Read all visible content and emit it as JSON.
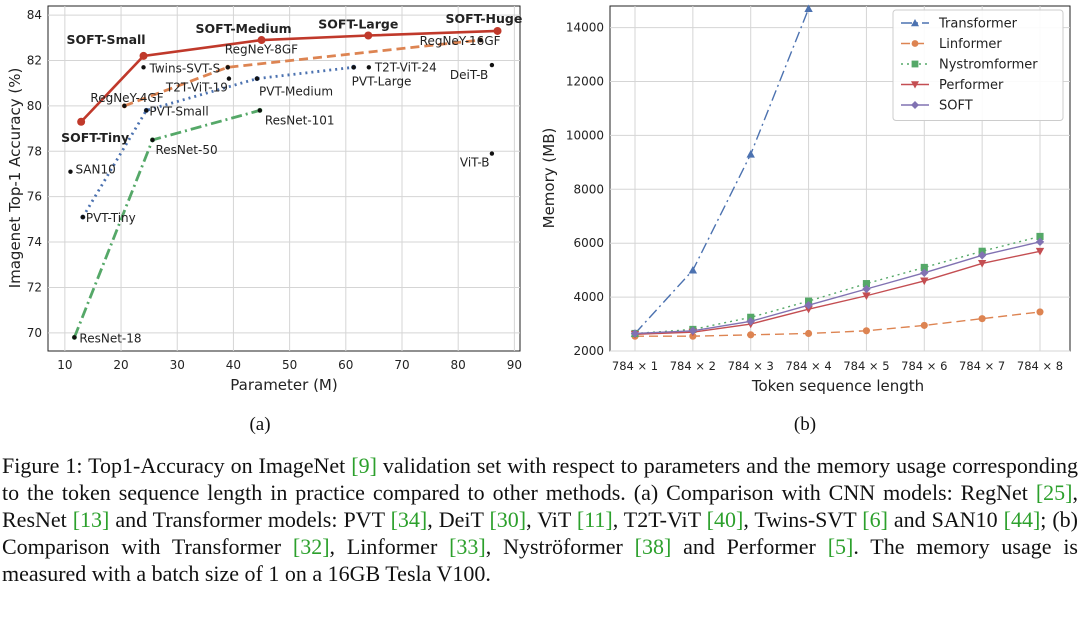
{
  "chart_data": [
    {
      "type": "scatter",
      "panel_label": "(a)",
      "xlabel": "Parameter (M)",
      "ylabel": "Imagenet Top-1 Accuracy (%)",
      "xlim": [
        7,
        91
      ],
      "ylim": [
        69.2,
        84.4
      ],
      "xticks": [
        10,
        20,
        30,
        40,
        50,
        60,
        70,
        80,
        90
      ],
      "yticks": [
        70,
        72,
        74,
        76,
        78,
        80,
        82,
        84
      ],
      "grid": true,
      "lines": [
        {
          "name": "SOFT",
          "color": "#c0392b",
          "style": "solid",
          "x": [
            12.9,
            24,
            45,
            64,
            87
          ],
          "y": [
            79.3,
            82.2,
            82.9,
            83.1,
            83.3
          ]
        },
        {
          "name": "RegNetY",
          "color": "#dd8452",
          "style": "dashed",
          "x": [
            20.6,
            39,
            84
          ],
          "y": [
            80.0,
            81.7,
            82.9
          ]
        },
        {
          "name": "PVT",
          "color": "#4c72b0",
          "style": "dotted",
          "x": [
            13.2,
            24.5,
            44.2,
            61.4
          ],
          "y": [
            75.1,
            79.8,
            81.2,
            81.7
          ]
        },
        {
          "name": "ResNet",
          "color": "#55a868",
          "style": "dashdot",
          "x": [
            11.7,
            25.6,
            44.7
          ],
          "y": [
            69.8,
            78.5,
            79.8
          ]
        }
      ],
      "points": [
        {
          "label": "SOFT-Tiny",
          "x": 12.9,
          "y": 79.3,
          "bold": true
        },
        {
          "label": "SOFT-Small",
          "x": 24,
          "y": 82.2,
          "bold": true
        },
        {
          "label": "SOFT-Medium",
          "x": 45,
          "y": 82.9,
          "bold": true
        },
        {
          "label": "SOFT-Large",
          "x": 64,
          "y": 83.1,
          "bold": true
        },
        {
          "label": "SOFT-Huge",
          "x": 87,
          "y": 83.3,
          "bold": true
        },
        {
          "label": "RegNeY-4GF",
          "x": 20.6,
          "y": 80.0,
          "bold": false
        },
        {
          "label": "RegNeY-8GF",
          "x": 39,
          "y": 81.7,
          "bold": false
        },
        {
          "label": "RegNeY-16GF",
          "x": 84,
          "y": 82.9,
          "bold": false
        },
        {
          "label": "PVT-Tiny",
          "x": 13.2,
          "y": 75.1,
          "bold": false
        },
        {
          "label": "PVT-Small",
          "x": 24.5,
          "y": 79.8,
          "bold": false
        },
        {
          "label": "PVT-Medium",
          "x": 44.2,
          "y": 81.2,
          "bold": false
        },
        {
          "label": "PVT-Large",
          "x": 61.4,
          "y": 81.7,
          "bold": false
        },
        {
          "label": "ResNet-18",
          "x": 11.7,
          "y": 69.8,
          "bold": false
        },
        {
          "label": "ResNet-50",
          "x": 25.6,
          "y": 78.5,
          "bold": false
        },
        {
          "label": "ResNet-101",
          "x": 44.7,
          "y": 79.8,
          "bold": false
        },
        {
          "label": "Twins-SVT-S",
          "x": 24,
          "y": 81.7,
          "bold": false
        },
        {
          "label": "T2T-ViT-19",
          "x": 39.2,
          "y": 81.2,
          "bold": false
        },
        {
          "label": "T2T-ViT-24",
          "x": 64.1,
          "y": 81.7,
          "bold": false
        },
        {
          "label": "DeiT-B",
          "x": 86,
          "y": 81.8,
          "bold": false
        },
        {
          "label": "ViT-B",
          "x": 86,
          "y": 77.9,
          "bold": false
        },
        {
          "label": "SAN10",
          "x": 11,
          "y": 77.1,
          "bold": false
        }
      ]
    },
    {
      "type": "line",
      "panel_label": "(b)",
      "xlabel": "Token sequence length",
      "ylabel": "Memory (MB)",
      "categories": [
        "784 × 1",
        "784 × 2",
        "784 × 3",
        "784 × 4",
        "784 × 5",
        "784 × 6",
        "784 × 7",
        "784 × 8"
      ],
      "ylim": [
        2000,
        14800
      ],
      "yticks": [
        2000,
        4000,
        6000,
        8000,
        10000,
        12000,
        14000
      ],
      "grid": true,
      "legend": "top-right",
      "series": [
        {
          "name": "Transformer",
          "color": "#4c72b0",
          "style": "dashdot",
          "marker": "triangle",
          "values": [
            2650,
            5000,
            9300,
            14700,
            null,
            null,
            null,
            null
          ]
        },
        {
          "name": "Linformer",
          "color": "#dd8452",
          "style": "dashed",
          "marker": "circle",
          "values": [
            2550,
            2550,
            2600,
            2650,
            2750,
            2950,
            3200,
            3450
          ]
        },
        {
          "name": "Nystromformer",
          "color": "#55a868",
          "style": "dotted",
          "marker": "square",
          "values": [
            2650,
            2800,
            3250,
            3850,
            4500,
            5100,
            5700,
            6250
          ]
        },
        {
          "name": "Performer",
          "color": "#c44e52",
          "style": "solid",
          "marker": "triangle-down",
          "values": [
            2620,
            2700,
            3000,
            3550,
            4050,
            4600,
            5250,
            5700
          ]
        },
        {
          "name": "SOFT",
          "color": "#8172b2",
          "style": "solid",
          "marker": "diamond",
          "values": [
            2650,
            2750,
            3100,
            3700,
            4300,
            4900,
            5550,
            6050
          ]
        }
      ]
    }
  ],
  "caption": {
    "p1": "Figure 1: Top1-Accuracy on ImageNet ",
    "c1": "[9]",
    "p2": " validation set with respect to parameters and the memory usage corresponding to the token sequence length in practice compared to other methods. (a) Comparison with CNN models: RegNet ",
    "c2": "[25]",
    "p3": ", ResNet ",
    "c3": "[13]",
    "p4": " and Transformer models: PVT ",
    "c4": "[34]",
    "p5": ", DeiT ",
    "c5": "[30]",
    "p6": ", ViT ",
    "c6": "[11]",
    "p7": ", T2T-ViT ",
    "c7": "[40]",
    "p8": ", Twins-SVT ",
    "c8": "[6]",
    "p9": " and SAN10 ",
    "c9": "[44]",
    "p10": "; (b) Comparison with Transformer ",
    "c10": "[32]",
    "p11": ", Linformer ",
    "c11": "[33]",
    "p12": ", Nyströformer ",
    "c12": "[38]",
    "p13": " and Performer ",
    "c13": "[5]",
    "p14": ". The memory usage is measured with a batch size of 1 on a 16GB Tesla V100."
  }
}
